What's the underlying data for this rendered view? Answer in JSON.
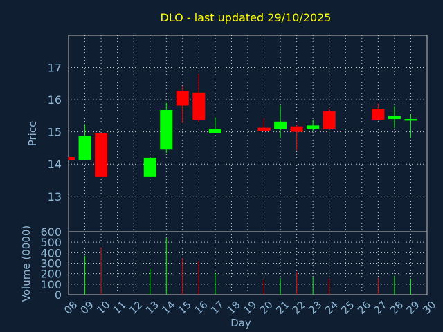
{
  "chart_data": {
    "type": "candlestick",
    "title": "DLO - last updated 29/10/2025",
    "xlabel": "Day",
    "ylabel_price": "Price",
    "ylabel_volume": "Volume (0000)",
    "days": [
      "08",
      "09",
      "10",
      "11",
      "12",
      "13",
      "14",
      "15",
      "16",
      "17",
      "18",
      "19",
      "20",
      "21",
      "22",
      "23",
      "24",
      "25",
      "26",
      "27",
      "28",
      "29",
      "30"
    ],
    "price_axis": {
      "ylim": [
        11.9,
        18.0
      ],
      "ticks": [
        13,
        14,
        15,
        16,
        17
      ]
    },
    "volume_axis": {
      "ylim": [
        0,
        600
      ],
      "ticks": [
        0,
        100,
        200,
        300,
        400,
        500,
        600
      ]
    },
    "grid": true,
    "colors": {
      "up": "#00ff00",
      "down": "#ff0000",
      "title": "#ffff00",
      "axis_text": "#8fb8d6",
      "background": "#0f1e30"
    },
    "candles": [
      {
        "day": "08",
        "open": 14.22,
        "close": 14.12,
        "high": 14.22,
        "low": 14.12,
        "volume": 0
      },
      {
        "day": "09",
        "open": 14.12,
        "close": 14.88,
        "high": 15.22,
        "low": 14.12,
        "volume": 370
      },
      {
        "day": "10",
        "open": 14.95,
        "close": 13.6,
        "high": 14.95,
        "low": 13.6,
        "volume": 450
      },
      {
        "day": "13",
        "open": 13.6,
        "close": 14.2,
        "high": 14.2,
        "low": 13.6,
        "volume": 245
      },
      {
        "day": "14",
        "open": 14.45,
        "close": 15.68,
        "high": 15.9,
        "low": 14.35,
        "volume": 540
      },
      {
        "day": "15",
        "open": 16.28,
        "close": 15.82,
        "high": 16.42,
        "low": 15.28,
        "volume": 350
      },
      {
        "day": "16",
        "open": 16.22,
        "close": 15.38,
        "high": 16.8,
        "low": 15.32,
        "volume": 320
      },
      {
        "day": "17",
        "open": 14.95,
        "close": 15.1,
        "high": 15.45,
        "low": 14.95,
        "volume": 210
      },
      {
        "day": "20",
        "open": 15.13,
        "close": 15.02,
        "high": 15.42,
        "low": 15.02,
        "volume": 140
      },
      {
        "day": "21",
        "open": 15.08,
        "close": 15.32,
        "high": 15.82,
        "low": 14.8,
        "volume": 160
      },
      {
        "day": "22",
        "open": 15.17,
        "close": 15.0,
        "high": 15.22,
        "low": 14.42,
        "volume": 215
      },
      {
        "day": "23",
        "open": 15.1,
        "close": 15.2,
        "high": 15.38,
        "low": 15.02,
        "volume": 170
      },
      {
        "day": "24",
        "open": 15.65,
        "close": 15.1,
        "high": 15.72,
        "low": 15.1,
        "volume": 155
      },
      {
        "day": "27",
        "open": 15.72,
        "close": 15.38,
        "high": 15.88,
        "low": 15.38,
        "volume": 160
      },
      {
        "day": "28",
        "open": 15.4,
        "close": 15.5,
        "high": 15.8,
        "low": 15.12,
        "volume": 180
      },
      {
        "day": "29",
        "open": 15.35,
        "close": 15.4,
        "high": 15.55,
        "low": 14.8,
        "volume": 150
      }
    ]
  }
}
